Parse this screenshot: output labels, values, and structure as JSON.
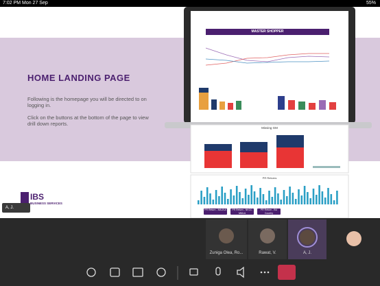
{
  "status_bar": {
    "time": "7:02 PM",
    "date": "Mon 27 Sep",
    "battery": "55%"
  },
  "slide": {
    "title": "HOME LANDING PAGE",
    "paragraphs": [
      "Following is the homepage you will be directed to on logging in.",
      "Click on the buttons at the bottom of the page to view drill down reports."
    ],
    "logo": {
      "name": "IBS",
      "subtitle": "BUSINESS SERVICES"
    },
    "presenter_tag": "A, J."
  },
  "dashboard": {
    "banner": "MASTER SHOPPER",
    "chart_title": "Missing GM",
    "trend_title": "PR Returns",
    "buttons": [
      "PR Return - MAJ/LA",
      "PR Return - NKCC MMLA",
      "PR Return - BU Country"
    ]
  },
  "participants": [
    {
      "name": "Zuniga Olea, Ro..."
    },
    {
      "name": "Rawat, V."
    },
    {
      "name": "A, J."
    }
  ]
}
